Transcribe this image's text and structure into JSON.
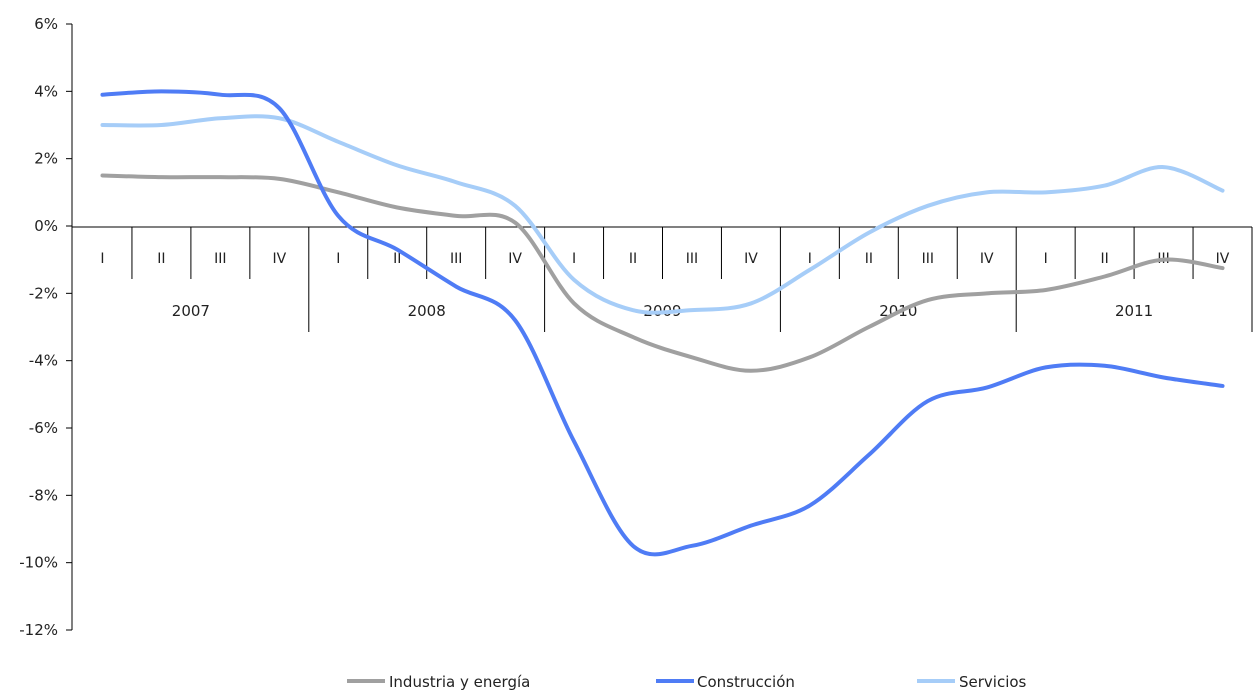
{
  "chart_data": {
    "type": "line",
    "title": "",
    "xlabel": "",
    "ylabel": "",
    "ylim": [
      -12,
      6
    ],
    "y_ticks": [
      "6%",
      "4%",
      "2%",
      "0%",
      "-2%",
      "-4%",
      "-6%",
      "-8%",
      "-10%",
      "-12%"
    ],
    "y_tick_values": [
      6,
      4,
      2,
      0,
      -2,
      -4,
      -6,
      -8,
      -10,
      -12
    ],
    "quarter_labels": [
      "I",
      "II",
      "III",
      "IV",
      "I",
      "II",
      "III",
      "IV",
      "I",
      "II",
      "III",
      "IV",
      "I",
      "II",
      "III",
      "IV",
      "I",
      "II",
      "III",
      "IV"
    ],
    "years": [
      "2007",
      "2008",
      "2009",
      "2010",
      "2011"
    ],
    "grid": false,
    "legend_position": "bottom",
    "series": [
      {
        "name": "Industria y energía",
        "color": "#a0a0a0",
        "values": [
          1.5,
          1.45,
          1.45,
          1.4,
          1.0,
          0.55,
          0.3,
          0.1,
          -2.3,
          -3.3,
          -3.9,
          -4.3,
          -3.9,
          -3.0,
          -2.2,
          -2.0,
          -1.9,
          -1.5,
          -1.0,
          -1.25
        ]
      },
      {
        "name": "Construcción",
        "color": "#4f7cf5",
        "values": [
          3.9,
          4.0,
          3.9,
          3.5,
          0.3,
          -0.7,
          -1.8,
          -2.8,
          -6.4,
          -9.5,
          -9.5,
          -8.9,
          -8.3,
          -6.8,
          -5.2,
          -4.8,
          -4.2,
          -4.15,
          -4.5,
          -4.75
        ]
      },
      {
        "name": "Servicios",
        "color": "#a6cdf8",
        "values": [
          3.0,
          3.0,
          3.2,
          3.2,
          2.5,
          1.8,
          1.3,
          0.6,
          -1.6,
          -2.5,
          -2.5,
          -2.3,
          -1.3,
          -0.2,
          0.6,
          1.0,
          1.0,
          1.2,
          1.75,
          1.05
        ]
      }
    ]
  }
}
